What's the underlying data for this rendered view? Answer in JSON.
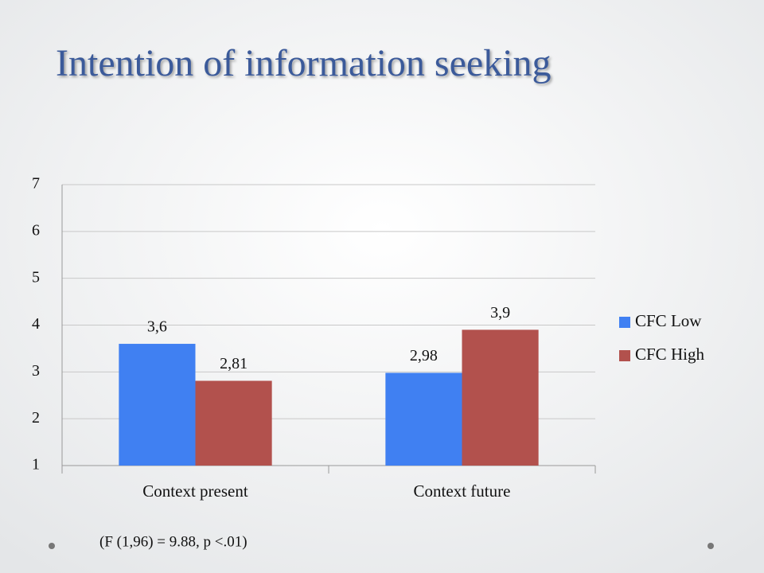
{
  "chart_data": {
    "type": "bar",
    "title": "Intention of information seeking",
    "categories": [
      "Context present",
      "Context future"
    ],
    "series": [
      {
        "name": "CFC Low",
        "color": "#4080f2",
        "values": [
          3.6,
          2.98
        ],
        "value_labels": [
          "3,6",
          "2,98"
        ]
      },
      {
        "name": "CFC High",
        "color": "#b2514d",
        "values": [
          2.81,
          3.9
        ],
        "value_labels": [
          "2,81",
          "3,9"
        ]
      }
    ],
    "ylim": [
      1,
      7
    ],
    "yticks": [
      1,
      2,
      3,
      4,
      5,
      6,
      7
    ],
    "grid": true,
    "legend": "right",
    "annotation": "(F (1,96) = 9.88, p <.01)"
  }
}
